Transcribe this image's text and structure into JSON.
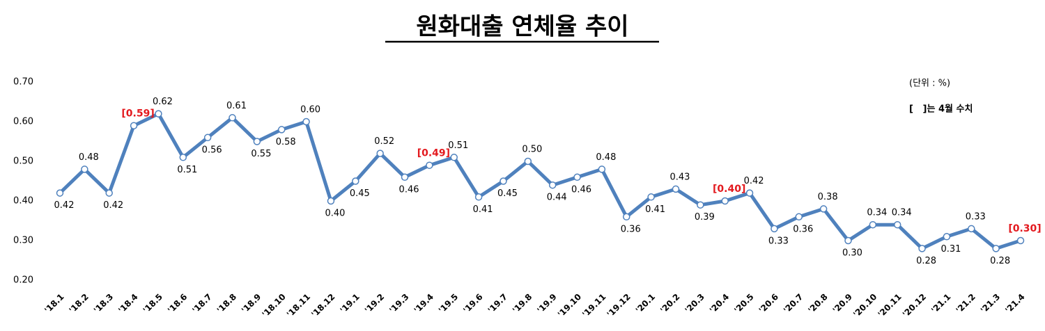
{
  "chart_data": {
    "type": "line",
    "title": "원화대출 연체율 추이",
    "unit": "(단위 : %)",
    "note": "[   ]는 4월 수치",
    "categories": [
      "'18.1",
      "'18.2",
      "'18.3",
      "'18.4",
      "'18.5",
      "'18.6",
      "'18.7",
      "'18.8",
      "'18.9",
      "'18.10",
      "'18.11",
      "'18.12",
      "'19.1",
      "'19.2",
      "'19.3",
      "'19.4",
      "'19.5",
      "'19.6",
      "'19.7",
      "'19.8",
      "'19.9",
      "'19.10",
      "'19.11",
      "'19.12",
      "'20.1",
      "'20.2",
      "'20.3",
      "'20.4",
      "'20.5",
      "'20.6",
      "'20.7",
      "'20.8",
      "'20.9",
      "'20.10",
      "'20.11",
      "'20.12",
      "'21.1",
      "'21.2",
      "'21.3",
      "'21.4"
    ],
    "values": [
      0.42,
      0.48,
      0.42,
      0.59,
      0.62,
      0.51,
      0.56,
      0.61,
      0.55,
      0.58,
      0.6,
      0.4,
      0.45,
      0.52,
      0.46,
      0.49,
      0.51,
      0.41,
      0.45,
      0.5,
      0.44,
      0.46,
      0.48,
      0.36,
      0.41,
      0.43,
      0.39,
      0.4,
      0.42,
      0.33,
      0.36,
      0.38,
      0.3,
      0.34,
      0.34,
      0.28,
      0.31,
      0.33,
      0.28,
      0.3
    ],
    "value_labels": [
      "0.42",
      "0.48",
      "0.42",
      "[0.59]",
      "0.62",
      "0.51",
      "0.56",
      "0.61",
      "0.55",
      "0.58",
      "0.60",
      "0.40",
      "0.45",
      "0.52",
      "0.46",
      "[0.49]",
      "0.51",
      "0.41",
      "0.45",
      "0.50",
      "0.44",
      "0.46",
      "0.48",
      "0.36",
      "0.41",
      "0.43",
      "0.39",
      "[0.40]",
      "0.42",
      "0.33",
      "0.36",
      "0.38",
      "0.30",
      "0.34",
      "0.34",
      "0.28",
      "0.31",
      "0.33",
      "0.28",
      "[0.30]"
    ],
    "color": "#4f81bd",
    "highlight_color": "#e3191e",
    "grid": false,
    "ylim": [
      0.2,
      0.7
    ],
    "yticks": [
      {
        "value": 0.2,
        "label": "0.20"
      },
      {
        "value": 0.3,
        "label": "0.30"
      },
      {
        "value": 0.4,
        "label": "0.40"
      },
      {
        "value": 0.5,
        "label": "0.50"
      },
      {
        "value": 0.6,
        "label": "0.60"
      },
      {
        "value": 0.7,
        "label": "0.70"
      }
    ]
  }
}
